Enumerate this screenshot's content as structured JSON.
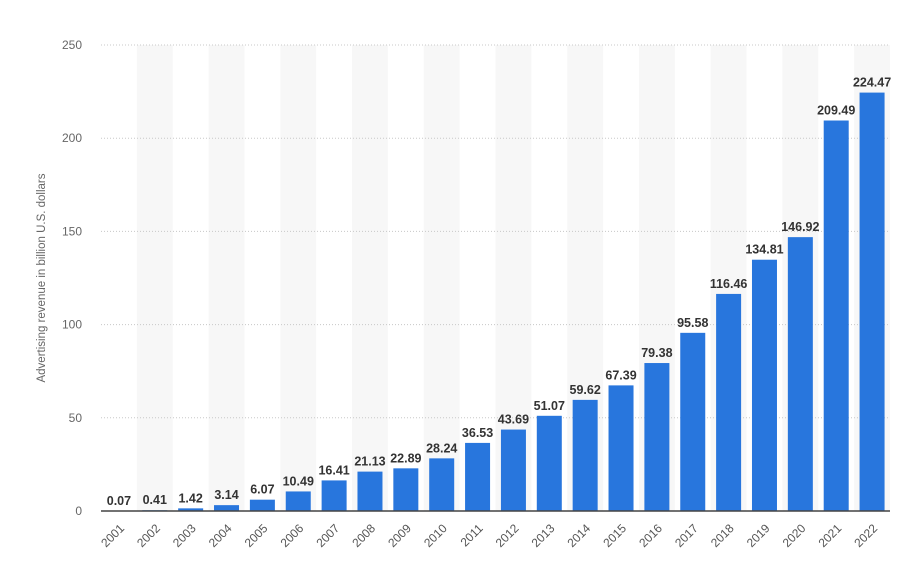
{
  "chart_data": {
    "type": "bar",
    "title": "",
    "xlabel": "",
    "ylabel": "Advertising revenue in billion U.S. dollars",
    "ylim": [
      0,
      250
    ],
    "yticks": [
      0,
      50,
      100,
      150,
      200,
      250
    ],
    "grid": true,
    "bar_color": "#2876dd",
    "categories": [
      "2001",
      "2002",
      "2003",
      "2004",
      "2005",
      "2006",
      "2007",
      "2008",
      "2009",
      "2010",
      "2011",
      "2012",
      "2013",
      "2014",
      "2015",
      "2016",
      "2017",
      "2018",
      "2019",
      "2020",
      "2021",
      "2022"
    ],
    "values": [
      0.07,
      0.41,
      1.42,
      3.14,
      6.07,
      10.49,
      16.41,
      21.13,
      22.89,
      28.24,
      36.53,
      43.69,
      51.07,
      59.62,
      67.39,
      79.38,
      95.58,
      116.46,
      134.81,
      146.92,
      209.49,
      224.47
    ],
    "data_labels": [
      "0.07",
      "0.41",
      "1.42",
      "3.14",
      "6.07",
      "10.49",
      "16.41",
      "21.13",
      "22.89",
      "28.24",
      "36.53",
      "43.69",
      "51.07",
      "59.62",
      "67.39",
      "79.38",
      "95.58",
      "116.46",
      "134.81",
      "146.92",
      "209.49",
      "224.47"
    ]
  }
}
